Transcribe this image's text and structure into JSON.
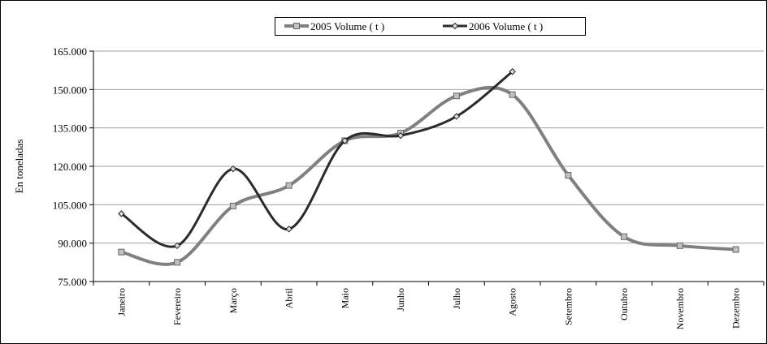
{
  "chart_data": {
    "type": "line",
    "y_label": "En toneladas",
    "categories": [
      "Janeiro",
      "Fevereiro",
      "Março",
      "Abril",
      "Maio",
      "Junho",
      "Julho",
      "Agosto",
      "Setembro",
      "Outubro",
      "Novembro",
      "Dezembro"
    ],
    "series": [
      {
        "name": "2005 Volume ( t )",
        "color": "#808080",
        "values": [
          86500,
          82500,
          104500,
          112500,
          130000,
          133000,
          147500,
          148000,
          116500,
          92500,
          89000,
          87500
        ]
      },
      {
        "name": "2006 Volume ( t )",
        "color": "#2b2b2b",
        "values": [
          101500,
          89000,
          119000,
          95500,
          130000,
          132000,
          139500,
          157000,
          null,
          null,
          null,
          null
        ]
      }
    ],
    "ylim": [
      75000,
      165000
    ],
    "yticks": [
      {
        "value": 75000,
        "label": "75.000"
      },
      {
        "value": 90000,
        "label": "90.000"
      },
      {
        "value": 105000,
        "label": "105.000"
      },
      {
        "value": 120000,
        "label": "120.000"
      },
      {
        "value": 135000,
        "label": "135.000"
      },
      {
        "value": 150000,
        "label": "150.000"
      },
      {
        "value": 165000,
        "label": "165.000"
      }
    ],
    "grid": true,
    "legend": "top",
    "smooth": true
  }
}
